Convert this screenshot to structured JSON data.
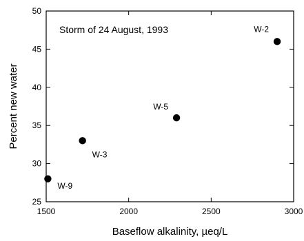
{
  "chart_data": {
    "type": "scatter",
    "title": "Storm of 24 August, 1993",
    "xlabel": "Baseflow alkalinity, µeq/L",
    "ylabel": "Percent new water",
    "xlim": [
      1500,
      3000
    ],
    "ylim": [
      25,
      50
    ],
    "x_ticks": [
      1500,
      2000,
      2500,
      3000
    ],
    "y_ticks": [
      25,
      30,
      35,
      40,
      45,
      50
    ],
    "grid": false,
    "points": [
      {
        "label": "W-9",
        "x": 1510,
        "y": 28
      },
      {
        "label": "W-3",
        "x": 1720,
        "y": 33
      },
      {
        "label": "W-5",
        "x": 2290,
        "y": 36
      },
      {
        "label": "W-2",
        "x": 2900,
        "y": 46
      }
    ]
  }
}
